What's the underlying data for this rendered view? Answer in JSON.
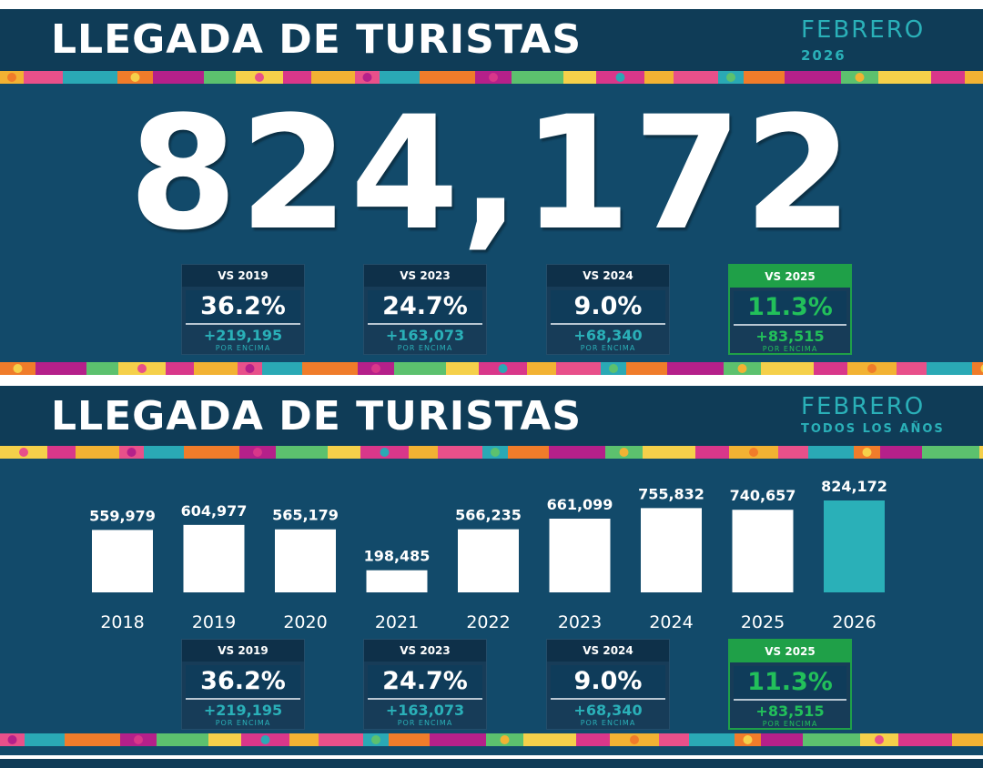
{
  "top": {
    "title": "LLEGADA DE TURISTAS",
    "period_month": "FEBRERO",
    "period_year": "2026",
    "total": "824,172",
    "cards": [
      {
        "head": "VS 2019",
        "pct": "36.2%",
        "diff": "+219,195",
        "note": "POR ENCIMA",
        "highlight": false
      },
      {
        "head": "VS 2023",
        "pct": "24.7%",
        "diff": "+163,073",
        "note": "POR ENCIMA",
        "highlight": false
      },
      {
        "head": "VS 2024",
        "pct": "9.0%",
        "diff": "+68,340",
        "note": "POR ENCIMA",
        "highlight": false
      },
      {
        "head": "VS 2025",
        "pct": "11.3%",
        "diff": "+83,515",
        "note": "POR ENCIMA",
        "highlight": true
      }
    ]
  },
  "bottom": {
    "title": "LLEGADA DE TURISTAS",
    "period_month": "FEBRERO",
    "period_sub": "TODOS LOS AÑOS",
    "cards": [
      {
        "head": "VS 2019",
        "pct": "36.2%",
        "diff": "+219,195",
        "note": "POR ENCIMA",
        "highlight": false
      },
      {
        "head": "VS 2023",
        "pct": "24.7%",
        "diff": "+163,073",
        "note": "POR ENCIMA",
        "highlight": false
      },
      {
        "head": "VS 2024",
        "pct": "9.0%",
        "diff": "+68,340",
        "note": "POR ENCIMA",
        "highlight": false
      },
      {
        "head": "VS 2025",
        "pct": "11.3%",
        "diff": "+83,515",
        "note": "POR ENCIMA",
        "highlight": true
      }
    ]
  },
  "colors": {
    "panel": "#124a6a",
    "title_bar": "#0f3c57",
    "accent_teal": "#2ab0b8",
    "highlight_green": "#1fa048",
    "bar_default": "#ffffff",
    "bar_highlight": "#2ab0b8"
  },
  "chart_data": {
    "type": "bar",
    "categories": [
      "2018",
      "2019",
      "2020",
      "2021",
      "2022",
      "2023",
      "2024",
      "2025",
      "2026"
    ],
    "values": [
      559979,
      604977,
      565179,
      198485,
      566235,
      661099,
      755832,
      740657,
      824172
    ],
    "value_labels": [
      "559,979",
      "604,977",
      "565,179",
      "198,485",
      "566,235",
      "661,099",
      "755,832",
      "740,657",
      "824,172"
    ],
    "highlight_category": "2026",
    "title": "",
    "xlabel": "",
    "ylabel": "",
    "ylim": [
      0,
      824172
    ],
    "grid": false,
    "legend": "none"
  }
}
